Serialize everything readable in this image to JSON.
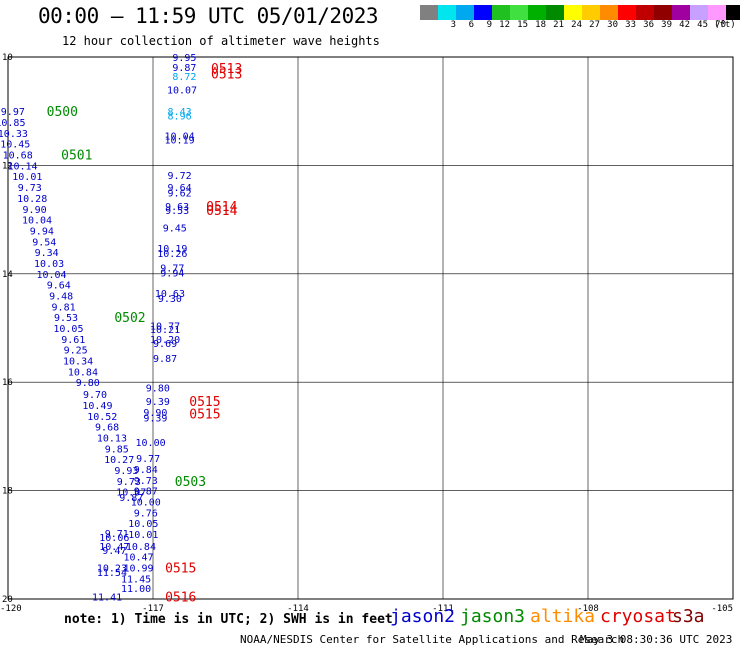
{
  "header": {
    "title": "00:00 — 11:59 UTC 05/01/2023",
    "subtitle": "12 hour collection of altimeter wave heights"
  },
  "legend": {
    "unit": "(ft)",
    "bins": [
      {
        "label": "",
        "color": "#808080"
      },
      {
        "label": "3",
        "color": "#00e5ee"
      },
      {
        "label": "6",
        "color": "#00a8f0"
      },
      {
        "label": "9",
        "color": "#0000ff"
      },
      {
        "label": "12",
        "color": "#20c020"
      },
      {
        "label": "15",
        "color": "#40e040"
      },
      {
        "label": "18",
        "color": "#00b000"
      },
      {
        "label": "21",
        "color": "#008a00"
      },
      {
        "label": "24",
        "color": "#ffff00"
      },
      {
        "label": "27",
        "color": "#ffcc00"
      },
      {
        "label": "30",
        "color": "#ff8c00"
      },
      {
        "label": "33",
        "color": "#ff0000"
      },
      {
        "label": "36",
        "color": "#c00000"
      },
      {
        "label": "39",
        "color": "#900000"
      },
      {
        "label": "42",
        "color": "#a000a0"
      },
      {
        "label": "45",
        "color": "#c8a0ff"
      },
      {
        "label": "70",
        "color": "#ff99ff"
      },
      {
        "label": "",
        "color": "#000000"
      }
    ]
  },
  "axes": {
    "lat_labels": [
      "10",
      "12",
      "14",
      "16",
      "18",
      "20"
    ],
    "lon_labels": [
      "-120",
      "-117",
      "-114",
      "-111",
      "-108",
      "-105"
    ]
  },
  "colors": {
    "jason2": "#0000cc",
    "jason3": "#008a00",
    "altika": "#ff8c00",
    "cryosat": "#e00000",
    "s3a": "#800000",
    "light_blue": "#00a8f0"
  },
  "track_points": [
    {
      "label": "9.95",
      "lat": 10.0,
      "lon": -116.35,
      "color": "#0000cc"
    },
    {
      "label": "9.87",
      "lat": 10.18,
      "lon": -116.35,
      "color": "#0000cc"
    },
    {
      "label": "8.72",
      "lat": 10.35,
      "lon": -116.35,
      "color": "#00a8f0"
    },
    {
      "label": "10.07",
      "lat": 10.6,
      "lon": -116.4,
      "color": "#0000cc"
    },
    {
      "label": "8.43",
      "lat": 11.0,
      "lon": -116.45,
      "color": "#00a8f0"
    },
    {
      "label": "8.96",
      "lat": 11.08,
      "lon": -116.45,
      "color": "#00a8f0"
    },
    {
      "label": "10.04",
      "lat": 11.45,
      "lon": -116.45,
      "color": "#0000cc"
    },
    {
      "label": "10.19",
      "lat": 11.52,
      "lon": -116.45,
      "color": "#0000cc"
    },
    {
      "label": "9.72",
      "lat": 12.18,
      "lon": -116.45,
      "color": "#0000cc"
    },
    {
      "label": "9.64",
      "lat": 12.4,
      "lon": -116.45,
      "color": "#0000cc"
    },
    {
      "label": "9.62",
      "lat": 12.5,
      "lon": -116.45,
      "color": "#0000cc"
    },
    {
      "label": "9.63",
      "lat": 12.75,
      "lon": -116.5,
      "color": "#0000cc"
    },
    {
      "label": "9.53",
      "lat": 12.82,
      "lon": -116.5,
      "color": "#0000cc"
    },
    {
      "label": "9.45",
      "lat": 13.15,
      "lon": -116.55,
      "color": "#0000cc"
    },
    {
      "label": "10.19",
      "lat": 13.52,
      "lon": -116.6,
      "color": "#0000cc"
    },
    {
      "label": "10.26",
      "lat": 13.62,
      "lon": -116.6,
      "color": "#0000cc"
    },
    {
      "label": "9.77",
      "lat": 13.88,
      "lon": -116.6,
      "color": "#0000cc"
    },
    {
      "label": "9.94",
      "lat": 13.98,
      "lon": -116.6,
      "color": "#0000cc"
    },
    {
      "label": "10.63",
      "lat": 14.35,
      "lon": -116.65,
      "color": "#0000cc"
    },
    {
      "label": "9.30",
      "lat": 14.45,
      "lon": -116.65,
      "color": "#0000cc"
    },
    {
      "label": "10.77",
      "lat": 14.95,
      "lon": -116.75,
      "color": "#0000cc"
    },
    {
      "label": "10.21",
      "lat": 15.02,
      "lon": -116.75,
      "color": "#0000cc"
    },
    {
      "label": "10.20",
      "lat": 15.2,
      "lon": -116.75,
      "color": "#0000cc"
    },
    {
      "label": "9.69",
      "lat": 15.28,
      "lon": -116.75,
      "color": "#0000cc"
    },
    {
      "label": "9.87",
      "lat": 15.55,
      "lon": -116.75,
      "color": "#0000cc"
    },
    {
      "label": "9.80",
      "lat": 16.1,
      "lon": -116.9,
      "color": "#0000cc"
    },
    {
      "label": "9.39",
      "lat": 16.35,
      "lon": -116.9,
      "color": "#0000cc"
    },
    {
      "label": "9.90",
      "lat": 16.55,
      "lon": -116.95,
      "color": "#0000cc"
    },
    {
      "label": "9.39",
      "lat": 16.65,
      "lon": -116.95,
      "color": "#0000cc"
    },
    {
      "label": "10.00",
      "lat": 17.1,
      "lon": -117.05,
      "color": "#0000cc"
    },
    {
      "label": "9.77",
      "lat": 17.4,
      "lon": -117.1,
      "color": "#0000cc"
    },
    {
      "label": "9.84",
      "lat": 17.6,
      "lon": -117.15,
      "color": "#0000cc"
    },
    {
      "label": "9.73",
      "lat": 17.8,
      "lon": -117.15,
      "color": "#0000cc"
    },
    {
      "label": "9.87",
      "lat": 18.0,
      "lon": -117.15,
      "color": "#0000cc"
    },
    {
      "label": "10.00",
      "lat": 18.2,
      "lon": -117.15,
      "color": "#0000cc"
    },
    {
      "label": "9.76",
      "lat": 18.4,
      "lon": -117.15,
      "color": "#0000cc"
    },
    {
      "label": "10.05",
      "lat": 18.6,
      "lon": -117.2,
      "color": "#0000cc"
    },
    {
      "label": "10.01",
      "lat": 18.8,
      "lon": -117.2,
      "color": "#0000cc"
    },
    {
      "label": "10.84",
      "lat": 19.02,
      "lon": -117.25,
      "color": "#0000cc"
    },
    {
      "label": "10.47",
      "lat": 19.22,
      "lon": -117.3,
      "color": "#0000cc"
    },
    {
      "label": "10.99",
      "lat": 19.42,
      "lon": -117.3,
      "color": "#0000cc"
    },
    {
      "label": "11.45",
      "lat": 19.62,
      "lon": -117.35,
      "color": "#0000cc"
    },
    {
      "label": "11.00",
      "lat": 19.8,
      "lon": -117.35,
      "color": "#0000cc"
    },
    {
      "label": "9.97",
      "lat": 11.0,
      "lon": -119.9,
      "color": "#0000cc"
    },
    {
      "label": "10.85",
      "lat": 11.2,
      "lon": -119.95,
      "color": "#0000cc"
    },
    {
      "label": "10.33",
      "lat": 11.4,
      "lon": -119.9,
      "color": "#0000cc"
    },
    {
      "label": "10.45",
      "lat": 11.6,
      "lon": -119.85,
      "color": "#0000cc"
    },
    {
      "label": "10.68",
      "lat": 11.8,
      "lon": -119.8,
      "color": "#0000cc"
    },
    {
      "label": "10.14",
      "lat": 12.0,
      "lon": -119.7,
      "color": "#0000cc"
    },
    {
      "label": "10.01",
      "lat": 12.2,
      "lon": -119.6,
      "color": "#0000cc"
    },
    {
      "label": "9.73",
      "lat": 12.4,
      "lon": -119.55,
      "color": "#0000cc"
    },
    {
      "label": "10.28",
      "lat": 12.6,
      "lon": -119.5,
      "color": "#0000cc"
    },
    {
      "label": "9.90",
      "lat": 12.8,
      "lon": -119.45,
      "color": "#0000cc"
    },
    {
      "label": "10.04",
      "lat": 13.0,
      "lon": -119.4,
      "color": "#0000cc"
    },
    {
      "label": "9.94",
      "lat": 13.2,
      "lon": -119.3,
      "color": "#0000cc"
    },
    {
      "label": "9.54",
      "lat": 13.4,
      "lon": -119.25,
      "color": "#0000cc"
    },
    {
      "label": "9.34",
      "lat": 13.6,
      "lon": -119.2,
      "color": "#0000cc"
    },
    {
      "label": "10.03",
      "lat": 13.8,
      "lon": -119.15,
      "color": "#0000cc"
    },
    {
      "label": "10.04",
      "lat": 14.0,
      "lon": -119.1,
      "color": "#0000cc"
    },
    {
      "label": "9.64",
      "lat": 14.2,
      "lon": -118.95,
      "color": "#0000cc"
    },
    {
      "label": "9.48",
      "lat": 14.4,
      "lon": -118.9,
      "color": "#0000cc"
    },
    {
      "label": "9.81",
      "lat": 14.6,
      "lon": -118.85,
      "color": "#0000cc"
    },
    {
      "label": "9.53",
      "lat": 14.8,
      "lon": -118.8,
      "color": "#0000cc"
    },
    {
      "label": "10.05",
      "lat": 15.0,
      "lon": -118.75,
      "color": "#0000cc"
    },
    {
      "label": "9.61",
      "lat": 15.2,
      "lon": -118.65,
      "color": "#0000cc"
    },
    {
      "label": "9.25",
      "lat": 15.4,
      "lon": -118.6,
      "color": "#0000cc"
    },
    {
      "label": "10.34",
      "lat": 15.6,
      "lon": -118.55,
      "color": "#0000cc"
    },
    {
      "label": "10.84",
      "lat": 15.8,
      "lon": -118.45,
      "color": "#0000cc"
    },
    {
      "label": "9.80",
      "lat": 16.0,
      "lon": -118.35,
      "color": "#0000cc"
    },
    {
      "label": "9.70",
      "lat": 16.22,
      "lon": -118.2,
      "color": "#0000cc"
    },
    {
      "label": "10.49",
      "lat": 16.42,
      "lon": -118.15,
      "color": "#0000cc"
    },
    {
      "label": "10.52",
      "lat": 16.62,
      "lon": -118.05,
      "color": "#0000cc"
    },
    {
      "label": "9.68",
      "lat": 16.82,
      "lon": -117.95,
      "color": "#0000cc"
    },
    {
      "label": "10.13",
      "lat": 17.02,
      "lon": -117.85,
      "color": "#0000cc"
    },
    {
      "label": "9.85",
      "lat": 17.22,
      "lon": -117.75,
      "color": "#0000cc"
    },
    {
      "label": "10.27",
      "lat": 17.42,
      "lon": -117.7,
      "color": "#0000cc"
    },
    {
      "label": "9.93",
      "lat": 17.62,
      "lon": -117.55,
      "color": "#0000cc"
    },
    {
      "label": "9.73",
      "lat": 17.82,
      "lon": -117.5,
      "color": "#0000cc"
    },
    {
      "label": "10.07",
      "lat": 18.02,
      "lon": -117.45,
      "color": "#0000cc"
    },
    {
      "label": "9.87",
      "lat": 18.12,
      "lon": -117.45,
      "color": "#0000cc"
    },
    {
      "label": "9.71",
      "lat": 18.78,
      "lon": -117.75,
      "color": "#0000cc"
    },
    {
      "label": "10.06",
      "lat": 18.86,
      "lon": -117.8,
      "color": "#0000cc"
    },
    {
      "label": "10.47",
      "lat": 19.02,
      "lon": -117.8,
      "color": "#0000cc"
    },
    {
      "label": "9.47",
      "lat": 19.1,
      "lon": -117.8,
      "color": "#0000cc"
    },
    {
      "label": "10.23",
      "lat": 19.42,
      "lon": -117.85,
      "color": "#0000cc"
    },
    {
      "label": "11.54",
      "lat": 19.5,
      "lon": -117.85,
      "color": "#0000cc"
    },
    {
      "label": "11.41",
      "lat": 19.95,
      "lon": -117.95,
      "color": "#0000cc"
    }
  ],
  "time_labels": [
    {
      "label": "0513",
      "lat": 10.2,
      "lon": -115.8,
      "color": "#e00000"
    },
    {
      "label": "0513",
      "lat": 10.3,
      "lon": -115.8,
      "color": "#e00000"
    },
    {
      "label": "0500",
      "lat": 11.0,
      "lon": -119.2,
      "color": "#008a00"
    },
    {
      "label": "0501",
      "lat": 11.8,
      "lon": -118.9,
      "color": "#008a00"
    },
    {
      "label": "0514",
      "lat": 12.75,
      "lon": -115.9,
      "color": "#e00000"
    },
    {
      "label": "0514",
      "lat": 12.82,
      "lon": -115.9,
      "color": "#e00000"
    },
    {
      "label": "0502",
      "lat": 14.8,
      "lon": -117.8,
      "color": "#008a00"
    },
    {
      "label": "0515",
      "lat": 16.35,
      "lon": -116.25,
      "color": "#e00000"
    },
    {
      "label": "0515",
      "lat": 16.58,
      "lon": -116.25,
      "color": "#e00000"
    },
    {
      "label": "0503",
      "lat": 17.82,
      "lon": -116.55,
      "color": "#008a00"
    },
    {
      "label": "0515",
      "lat": 19.42,
      "lon": -116.75,
      "color": "#e00000"
    },
    {
      "label": "0516",
      "lat": 19.95,
      "lon": -116.75,
      "color": "#e00000"
    }
  ],
  "footer": {
    "note": "note: 1) Time is in UTC; 2) SWH is in feet",
    "satellites": [
      {
        "name": "jason2",
        "color": "#0000cc"
      },
      {
        "name": "jason3",
        "color": "#008a00"
      },
      {
        "name": "altika",
        "color": "#ff8c00"
      },
      {
        "name": "cryosat",
        "color": "#e00000"
      },
      {
        "name": "s3a",
        "color": "#800000"
      }
    ],
    "credit": "NOAA/NESDIS Center for Satellite Applications and Research",
    "timestamp": "May  3 08:30:36 UTC 2023"
  }
}
